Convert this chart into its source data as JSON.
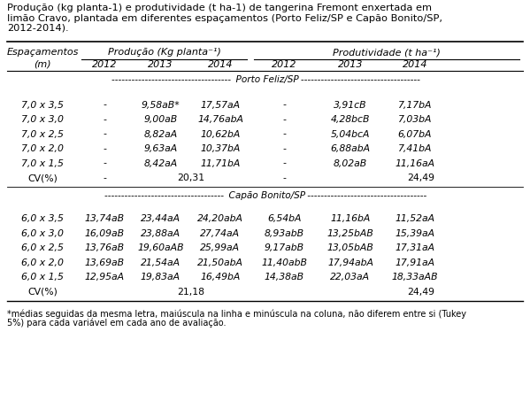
{
  "title_line1": "Produção (kg planta-1) e produtividade (t ha-1) de tangerina Fremont enxertada em",
  "title_line2": "limão Cravo, plantada em diferentes espaçamentos (Porto Feliz/SP e Capão Bonito/SP,",
  "title_line3": "2012-2014).",
  "porto_feliz_label": "Porto Feliz/SP",
  "capao_bonito_label": "Capão Bonito/SP",
  "porto_feliz_rows": [
    [
      "7,0 x 3,5",
      "-",
      "9,58aB*",
      "17,57aA",
      "-",
      "3,91cB",
      "7,17bA"
    ],
    [
      "7,0 x 3,0",
      "-",
      "9,00aB",
      "14,76abA",
      "-",
      "4,28bcB",
      "7,03bA"
    ],
    [
      "7,0 x 2,5",
      "-",
      "8,82aA",
      "10,62bA",
      "-",
      "5,04bcA",
      "6,07bA"
    ],
    [
      "7,0 x 2,0",
      "-",
      "9,63aA",
      "10,37bA",
      "-",
      "6,88abA",
      "7,41bA"
    ],
    [
      "7,0 x 1,5",
      "-",
      "8,42aA",
      "11,71bA",
      "-",
      "8,02aB",
      "11,16aA"
    ],
    [
      "CV(%)",
      "-",
      "20,31",
      "",
      "-",
      "24,49",
      ""
    ]
  ],
  "capao_bonito_rows": [
    [
      "6,0 x 3,5",
      "13,74aB",
      "23,44aA",
      "24,20abA",
      "6,54bA",
      "11,16bA",
      "11,52aA"
    ],
    [
      "6,0 x 3,0",
      "16,09aB",
      "23,88aA",
      "27,74aA",
      "8,93abB",
      "13,25bAB",
      "15,39aA"
    ],
    [
      "6,0 x 2,5",
      "13,76aB",
      "19,60aAB",
      "25,99aA",
      "9,17abB",
      "13,05bAB",
      "17,31aA"
    ],
    [
      "6,0 x 2,0",
      "13,69aB",
      "21,54aA",
      "21,50abA",
      "11,40abB",
      "17,94abA",
      "17,91aA"
    ],
    [
      "6,0 x 1,5",
      "12,95aA",
      "19,83aA",
      "16,49bA",
      "14,38aB",
      "22,03aA",
      "18,33aAB"
    ],
    [
      "CV(%)",
      "",
      "21,18",
      "",
      "",
      "24,49",
      ""
    ]
  ],
  "footnote1": "*médias seguidas da mesma letra, maiúscula na linha e minúscula na coluna, não diferem entre si (Tukey",
  "footnote2": "5%) para cada variável em cada ano de avaliação.",
  "bg_color": "#ffffff",
  "text_color": "#000000"
}
